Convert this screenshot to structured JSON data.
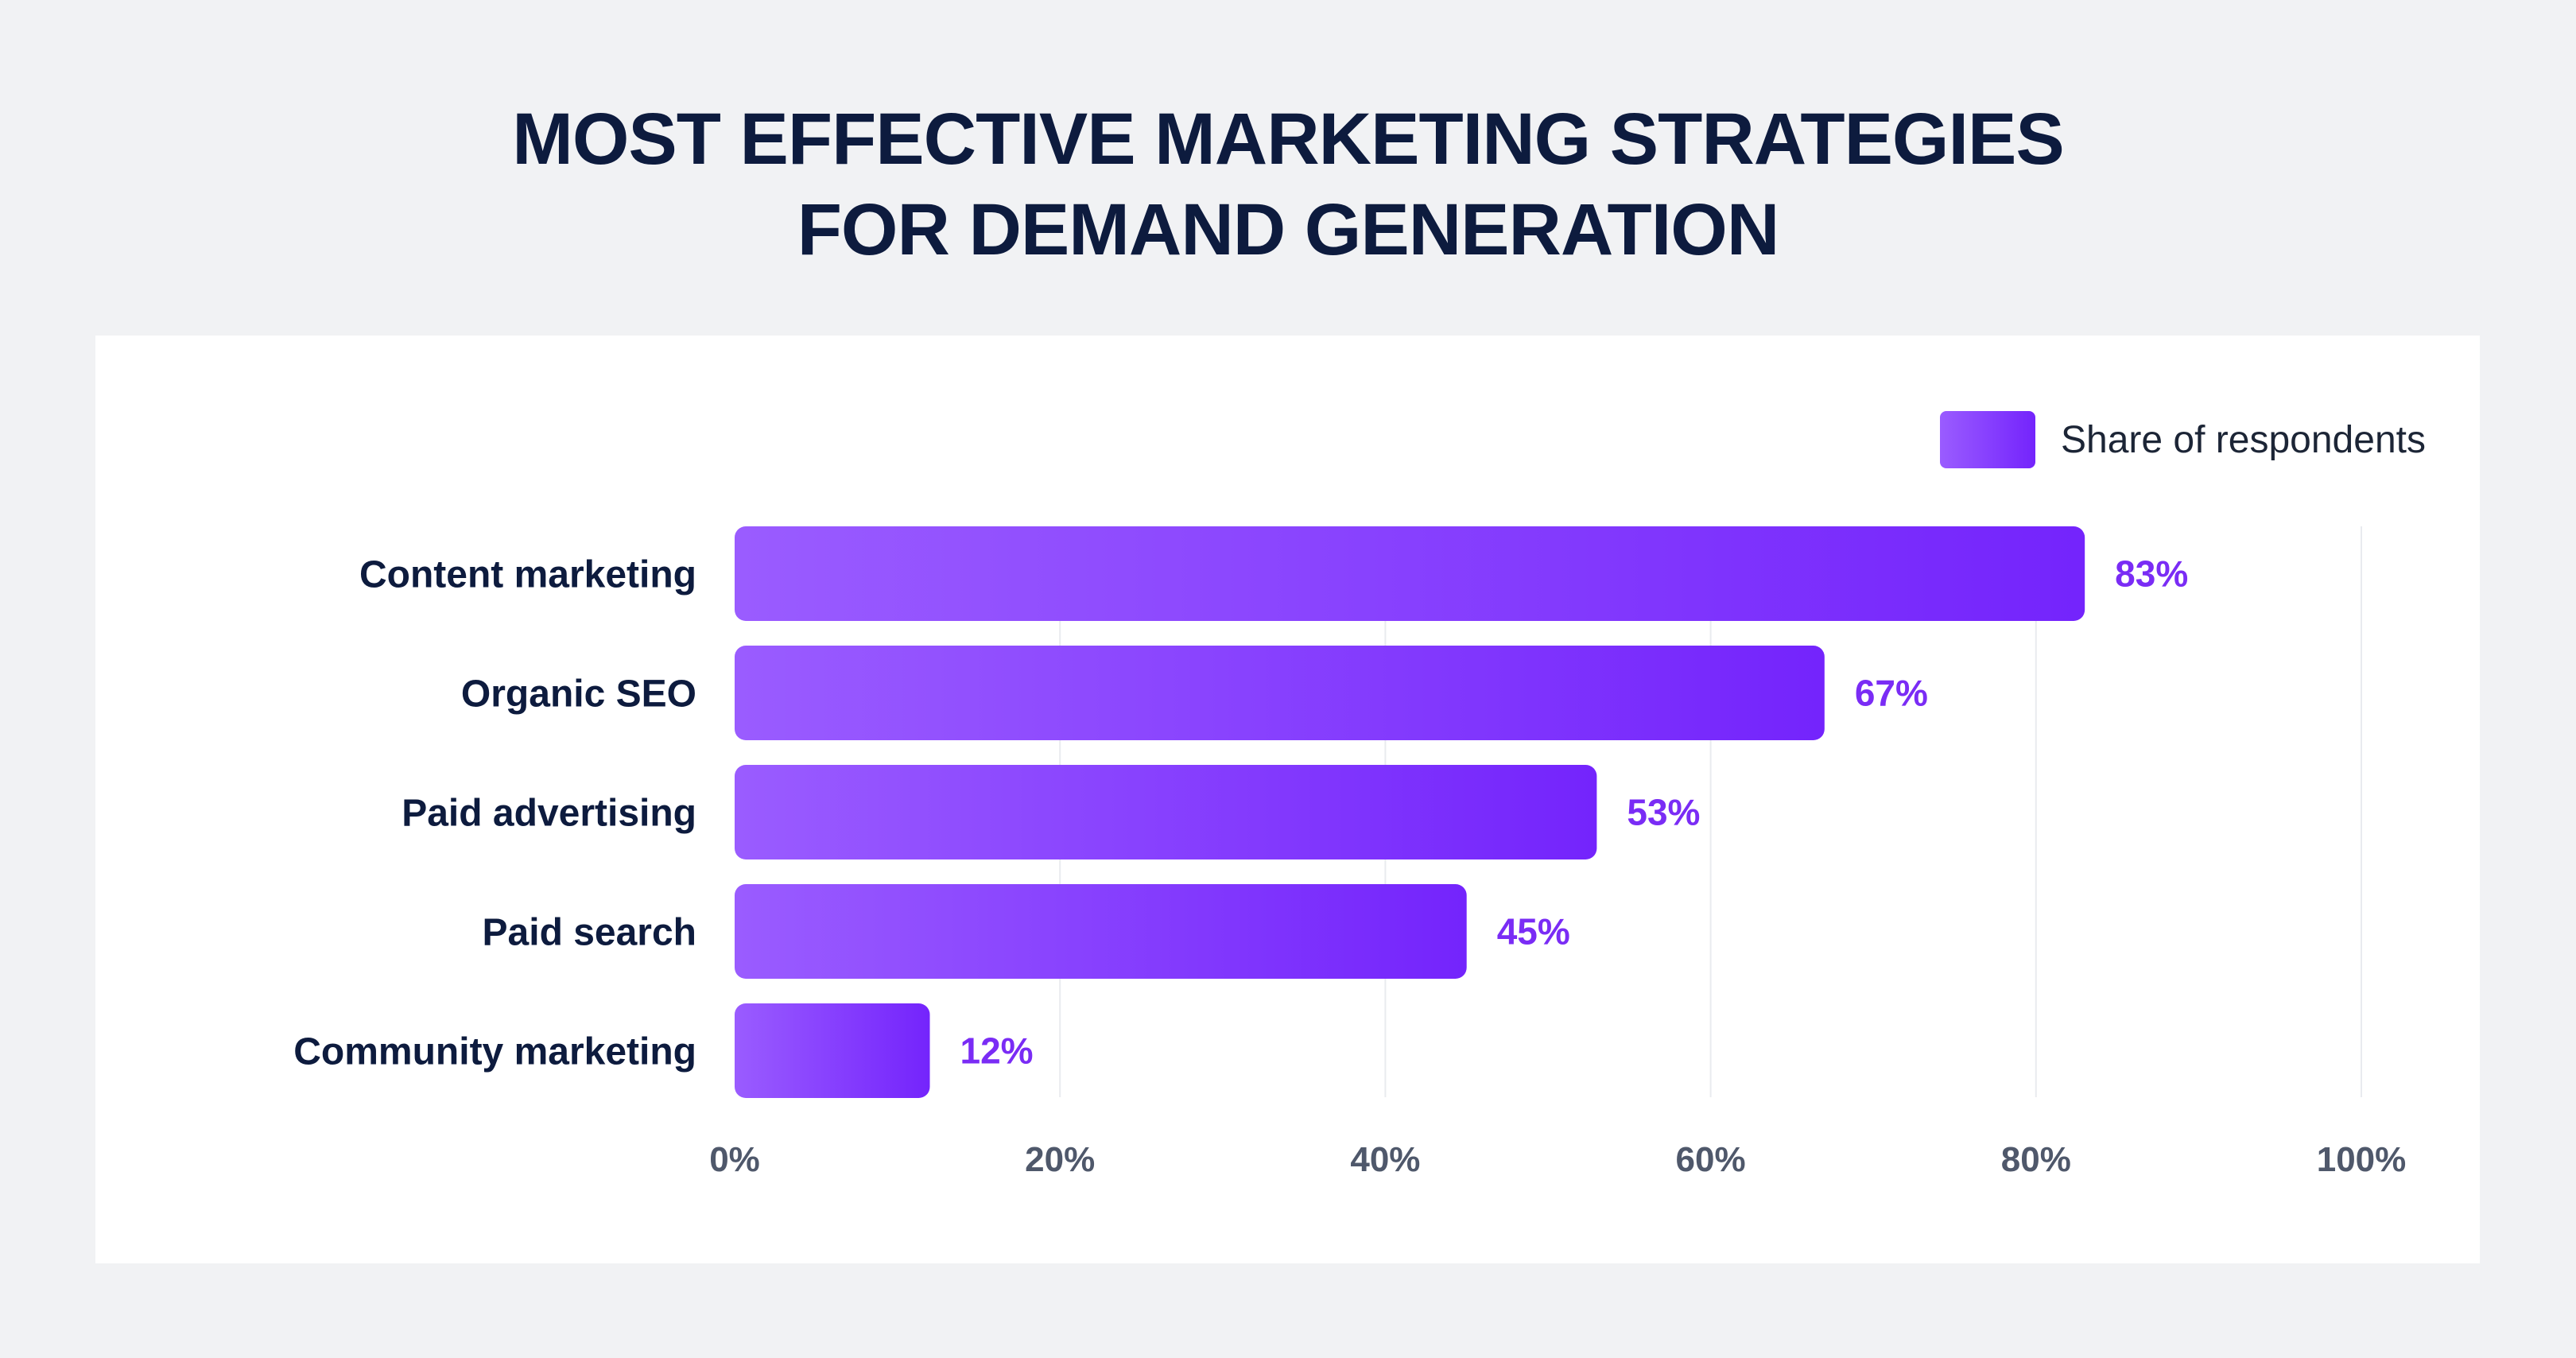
{
  "title_line1": "MOST EFFECTIVE MARKETING STRATEGIES",
  "title_line2": "FOR DEMAND GENERATION",
  "legend": {
    "label": "Share of respondents"
  },
  "colors": {
    "bar_start": "#9a5cff",
    "bar_end": "#7424fc",
    "value_label": "#7a2cf5",
    "title": "#0d1b3e",
    "tick": "#4f586b"
  },
  "chart_data": {
    "type": "bar",
    "orientation": "horizontal",
    "title": "MOST EFFECTIVE MARKETING STRATEGIES FOR DEMAND GENERATION",
    "categories": [
      "Content marketing",
      "Organic SEO",
      "Paid advertising",
      "Paid search",
      "Community marketing"
    ],
    "series": [
      {
        "name": "Share of respondents",
        "values": [
          83,
          67,
          53,
          45,
          12
        ]
      }
    ],
    "value_labels": [
      "83%",
      "67%",
      "53%",
      "45%",
      "12%"
    ],
    "xlim": [
      0,
      100
    ],
    "xticks": [
      0,
      20,
      40,
      60,
      80,
      100
    ],
    "xtick_labels": [
      "0%",
      "20%",
      "40%",
      "60%",
      "80%",
      "100%"
    ],
    "grid": true,
    "legend_position": "top-right"
  }
}
